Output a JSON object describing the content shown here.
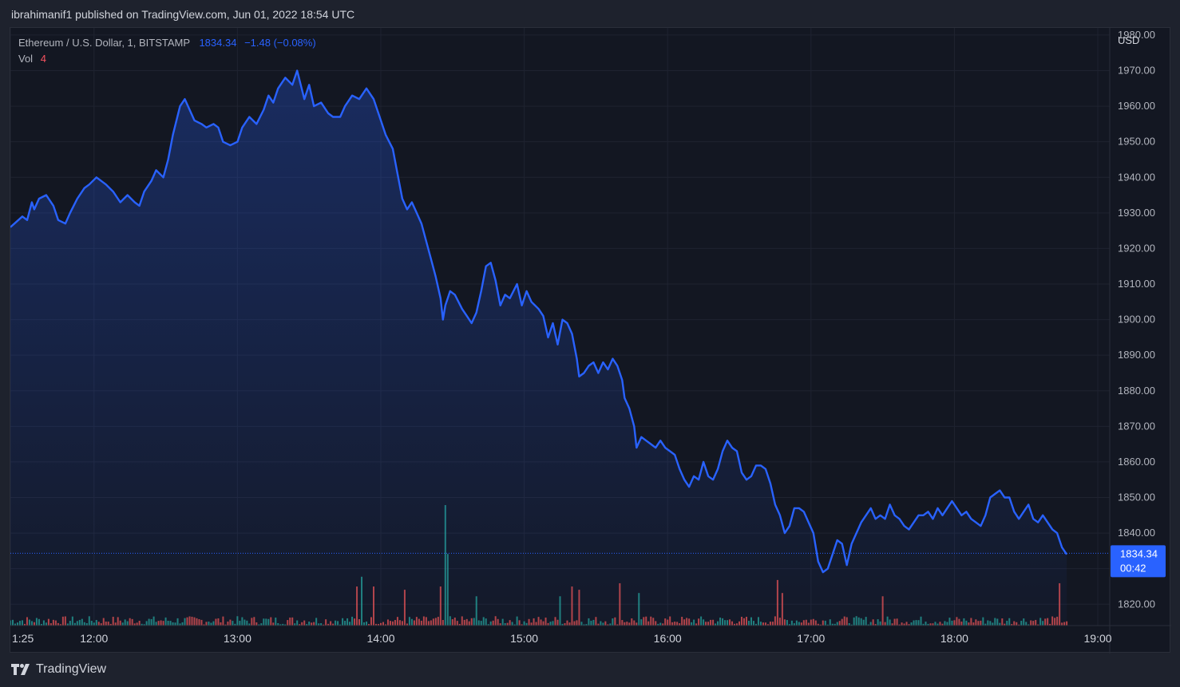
{
  "header": {
    "publisher_line": "ibrahimanif1 published on TradingView.com, Jun 01, 2022 18:54 UTC"
  },
  "legend": {
    "symbol": "Ethereum / U.S. Dollar, 1, BITSTAMP",
    "last_price": "1834.34",
    "change": "−1.48 (−0.08%)",
    "vol_label": "Vol",
    "vol_value": "4"
  },
  "axis": {
    "currency": "USD",
    "price_label": "1834.34",
    "countdown": "00:42"
  },
  "footer": {
    "brand": "TradingView"
  },
  "colors": {
    "line": "#2962ff",
    "up_volume": "#26a69a",
    "down_volume": "#ef5350",
    "background": "#131722",
    "grid": "#2a2e39"
  },
  "chart_data": {
    "type": "area",
    "title": "Ethereum / U.S. Dollar, 1, BITSTAMP",
    "ylabel": "USD",
    "ylim": [
      1814,
      1982
    ],
    "y_ticks": [
      "1820.00",
      "1830.00",
      "1840.00",
      "1850.00",
      "1860.00",
      "1870.00",
      "1880.00",
      "1890.00",
      "1900.00",
      "1910.00",
      "1920.00",
      "1930.00",
      "1940.00",
      "1950.00",
      "1960.00",
      "1970.00",
      "1980.00"
    ],
    "x_ticks": [
      "1:25",
      "12:00",
      "13:00",
      "14:00",
      "15:00",
      "16:00",
      "17:00",
      "18:00",
      "19:00"
    ],
    "x_tick_minutes": [
      685,
      720,
      780,
      840,
      900,
      960,
      1020,
      1080,
      1140
    ],
    "xlim_minutes": [
      685,
      1145
    ],
    "last_price": 1834.34,
    "price_series": {
      "name": "ETH/USD close",
      "points": [
        [
          685,
          1926
        ],
        [
          690,
          1929
        ],
        [
          692,
          1928
        ],
        [
          694,
          1933
        ],
        [
          695,
          1931
        ],
        [
          697,
          1934
        ],
        [
          700,
          1935
        ],
        [
          703,
          1932
        ],
        [
          705,
          1928
        ],
        [
          708,
          1927
        ],
        [
          710,
          1930
        ],
        [
          713,
          1934
        ],
        [
          716,
          1937
        ],
        [
          718,
          1938
        ],
        [
          721,
          1940
        ],
        [
          725,
          1938
        ],
        [
          728,
          1936
        ],
        [
          731,
          1933
        ],
        [
          734,
          1935
        ],
        [
          737,
          1933
        ],
        [
          739,
          1932
        ],
        [
          741,
          1936
        ],
        [
          744,
          1939
        ],
        [
          746,
          1942
        ],
        [
          749,
          1940
        ],
        [
          751,
          1945
        ],
        [
          753,
          1952
        ],
        [
          756,
          1960
        ],
        [
          758,
          1962
        ],
        [
          760,
          1959
        ],
        [
          762,
          1956
        ],
        [
          765,
          1955
        ],
        [
          767,
          1954
        ],
        [
          770,
          1955
        ],
        [
          772,
          1954
        ],
        [
          774,
          1950
        ],
        [
          777,
          1949
        ],
        [
          780,
          1950
        ],
        [
          782,
          1954
        ],
        [
          785,
          1957
        ],
        [
          788,
          1955
        ],
        [
          791,
          1959
        ],
        [
          793,
          1963
        ],
        [
          795,
          1961
        ],
        [
          797,
          1965
        ],
        [
          800,
          1968
        ],
        [
          803,
          1966
        ],
        [
          805,
          1970
        ],
        [
          808,
          1962
        ],
        [
          810,
          1966
        ],
        [
          812,
          1960
        ],
        [
          815,
          1961
        ],
        [
          818,
          1958
        ],
        [
          820,
          1957
        ],
        [
          823,
          1957
        ],
        [
          825,
          1960
        ],
        [
          828,
          1963
        ],
        [
          831,
          1962
        ],
        [
          834,
          1965
        ],
        [
          837,
          1962
        ],
        [
          840,
          1956
        ],
        [
          842,
          1952
        ],
        [
          845,
          1948
        ],
        [
          847,
          1941
        ],
        [
          849,
          1934
        ],
        [
          851,
          1931
        ],
        [
          853,
          1933
        ],
        [
          855,
          1930
        ],
        [
          857,
          1927
        ],
        [
          859,
          1922
        ],
        [
          861,
          1917
        ],
        [
          863,
          1912
        ],
        [
          865,
          1906
        ],
        [
          866,
          1900
        ],
        [
          867,
          1904
        ],
        [
          869,
          1908
        ],
        [
          871,
          1907
        ],
        [
          874,
          1903
        ],
        [
          876,
          1901
        ],
        [
          878,
          1899
        ],
        [
          880,
          1902
        ],
        [
          882,
          1908
        ],
        [
          884,
          1915
        ],
        [
          886,
          1916
        ],
        [
          888,
          1911
        ],
        [
          890,
          1904
        ],
        [
          892,
          1907
        ],
        [
          894,
          1906
        ],
        [
          897,
          1910
        ],
        [
          899,
          1904
        ],
        [
          901,
          1908
        ],
        [
          903,
          1905
        ],
        [
          906,
          1903
        ],
        [
          908,
          1901
        ],
        [
          910,
          1895
        ],
        [
          912,
          1899
        ],
        [
          914,
          1893
        ],
        [
          916,
          1900
        ],
        [
          918,
          1899
        ],
        [
          920,
          1896
        ],
        [
          922,
          1889
        ],
        [
          923,
          1884
        ],
        [
          925,
          1885
        ],
        [
          927,
          1887
        ],
        [
          929,
          1888
        ],
        [
          931,
          1885
        ],
        [
          933,
          1888
        ],
        [
          935,
          1886
        ],
        [
          937,
          1889
        ],
        [
          939,
          1887
        ],
        [
          941,
          1883
        ],
        [
          942,
          1878
        ],
        [
          944,
          1875
        ],
        [
          946,
          1870
        ],
        [
          947,
          1864
        ],
        [
          949,
          1867
        ],
        [
          951,
          1866
        ],
        [
          953,
          1865
        ],
        [
          955,
          1864
        ],
        [
          957,
          1866
        ],
        [
          959,
          1864
        ],
        [
          961,
          1863
        ],
        [
          963,
          1862
        ],
        [
          965,
          1858
        ],
        [
          967,
          1855
        ],
        [
          969,
          1853
        ],
        [
          971,
          1856
        ],
        [
          973,
          1855
        ],
        [
          975,
          1860
        ],
        [
          977,
          1856
        ],
        [
          979,
          1855
        ],
        [
          981,
          1858
        ],
        [
          983,
          1863
        ],
        [
          985,
          1866
        ],
        [
          987,
          1864
        ],
        [
          989,
          1863
        ],
        [
          991,
          1857
        ],
        [
          993,
          1855
        ],
        [
          995,
          1856
        ],
        [
          997,
          1859
        ],
        [
          999,
          1859
        ],
        [
          1001,
          1858
        ],
        [
          1003,
          1854
        ],
        [
          1005,
          1848
        ],
        [
          1007,
          1845
        ],
        [
          1009,
          1840
        ],
        [
          1011,
          1842
        ],
        [
          1013,
          1847
        ],
        [
          1015,
          1847
        ],
        [
          1017,
          1846
        ],
        [
          1019,
          1843
        ],
        [
          1021,
          1840
        ],
        [
          1023,
          1832
        ],
        [
          1025,
          1829
        ],
        [
          1027,
          1830
        ],
        [
          1029,
          1834
        ],
        [
          1031,
          1838
        ],
        [
          1033,
          1837
        ],
        [
          1035,
          1831
        ],
        [
          1037,
          1837
        ],
        [
          1039,
          1840
        ],
        [
          1041,
          1843
        ],
        [
          1043,
          1845
        ],
        [
          1045,
          1847
        ],
        [
          1047,
          1844
        ],
        [
          1049,
          1845
        ],
        [
          1051,
          1844
        ],
        [
          1053,
          1848
        ],
        [
          1055,
          1845
        ],
        [
          1057,
          1844
        ],
        [
          1059,
          1842
        ],
        [
          1061,
          1841
        ],
        [
          1063,
          1843
        ],
        [
          1065,
          1845
        ],
        [
          1067,
          1845
        ],
        [
          1069,
          1846
        ],
        [
          1071,
          1844
        ],
        [
          1073,
          1847
        ],
        [
          1075,
          1845
        ],
        [
          1077,
          1847
        ],
        [
          1079,
          1849
        ],
        [
          1081,
          1847
        ],
        [
          1083,
          1845
        ],
        [
          1085,
          1846
        ],
        [
          1087,
          1844
        ],
        [
          1089,
          1843
        ],
        [
          1091,
          1842
        ],
        [
          1093,
          1845
        ],
        [
          1095,
          1850
        ],
        [
          1097,
          1851
        ],
        [
          1099,
          1852
        ],
        [
          1101,
          1850
        ],
        [
          1103,
          1850
        ],
        [
          1105,
          1846
        ],
        [
          1107,
          1844
        ],
        [
          1109,
          1846
        ],
        [
          1111,
          1848
        ],
        [
          1113,
          1844
        ],
        [
          1115,
          1843
        ],
        [
          1117,
          1845
        ],
        [
          1119,
          1843
        ],
        [
          1121,
          1841
        ],
        [
          1123,
          1840
        ],
        [
          1125,
          1836
        ],
        [
          1127,
          1834
        ]
      ]
    },
    "volume_series": {
      "name": "Vol",
      "ylim": [
        0,
        50
      ],
      "spikes": [
        [
          830,
          12
        ],
        [
          832,
          15
        ],
        [
          837,
          12
        ],
        [
          850,
          11
        ],
        [
          865,
          12
        ],
        [
          867,
          37
        ],
        [
          868,
          22
        ],
        [
          880,
          9
        ],
        [
          915,
          9
        ],
        [
          920,
          12
        ],
        [
          923,
          11
        ],
        [
          940,
          13
        ],
        [
          948,
          10
        ],
        [
          1006,
          14
        ],
        [
          1008,
          10
        ],
        [
          1050,
          9
        ],
        [
          1124,
          13
        ]
      ]
    }
  }
}
